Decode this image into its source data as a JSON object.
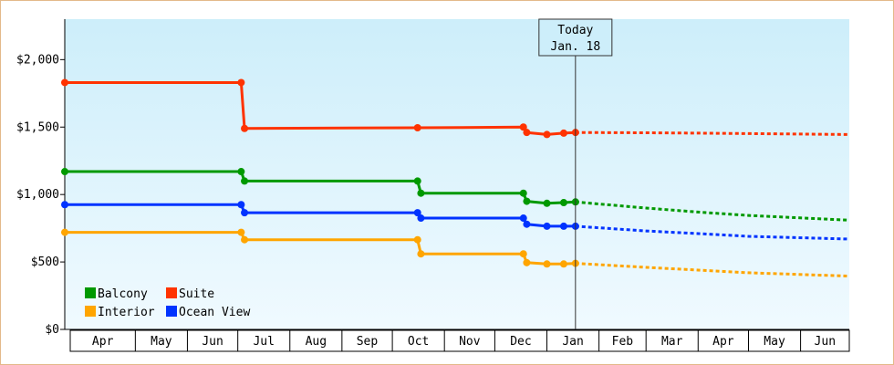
{
  "chart_data": {
    "type": "line",
    "step": true,
    "ylim": [
      0,
      2300
    ],
    "yticks": [
      0,
      500,
      1000,
      1500,
      2000
    ],
    "ytick_labels": [
      "$0",
      "$500",
      "$1,000",
      "$1,500",
      "$2,000"
    ],
    "xlim": [
      "2021-03-20",
      "2022-06-30"
    ],
    "months": [
      "Apr",
      "May",
      "Jun",
      "Jul",
      "Aug",
      "Sep",
      "Oct",
      "Nov",
      "Dec",
      "Jan",
      "Feb",
      "Mar",
      "Apr",
      "May",
      "Jun"
    ],
    "month_starts": [
      "2021-04-01",
      "2021-05-01",
      "2021-06-01",
      "2021-07-01",
      "2021-08-01",
      "2021-09-01",
      "2021-10-01",
      "2021-11-01",
      "2021-12-01",
      "2022-01-01",
      "2022-02-01",
      "2022-03-01",
      "2022-04-01",
      "2022-05-01",
      "2022-06-01"
    ],
    "today": {
      "date": "2022-01-18",
      "label_line1": "Today",
      "label_line2": "Jan. 18"
    },
    "legend_position": "bottom-left",
    "series": [
      {
        "name": "Suite",
        "color": "#ff3300",
        "points": [
          [
            "2021-03-20",
            1830
          ],
          [
            "2021-07-03",
            1830
          ],
          [
            "2021-07-05",
            1490
          ],
          [
            "2021-10-16",
            1495
          ],
          [
            "2021-12-18",
            1500
          ],
          [
            "2021-12-20",
            1460
          ],
          [
            "2022-01-01",
            1445
          ],
          [
            "2022-01-11",
            1455
          ],
          [
            "2022-01-18",
            1460
          ]
        ],
        "forecast": [
          [
            "2022-01-18",
            1460
          ],
          [
            "2022-03-01",
            1458
          ],
          [
            "2022-04-01",
            1455
          ],
          [
            "2022-05-01",
            1452
          ],
          [
            "2022-06-30",
            1445
          ]
        ]
      },
      {
        "name": "Balcony",
        "color": "#009900",
        "points": [
          [
            "2021-03-20",
            1170
          ],
          [
            "2021-07-03",
            1170
          ],
          [
            "2021-07-05",
            1100
          ],
          [
            "2021-10-16",
            1100
          ],
          [
            "2021-10-18",
            1010
          ],
          [
            "2021-12-18",
            1010
          ],
          [
            "2021-12-20",
            950
          ],
          [
            "2022-01-01",
            935
          ],
          [
            "2022-01-11",
            940
          ],
          [
            "2022-01-18",
            945
          ]
        ],
        "forecast": [
          [
            "2022-01-18",
            945
          ],
          [
            "2022-03-01",
            900
          ],
          [
            "2022-04-01",
            870
          ],
          [
            "2022-05-01",
            845
          ],
          [
            "2022-06-30",
            810
          ]
        ]
      },
      {
        "name": "Ocean View",
        "color": "#0033ff",
        "points": [
          [
            "2021-03-20",
            925
          ],
          [
            "2021-07-03",
            925
          ],
          [
            "2021-07-05",
            865
          ],
          [
            "2021-10-16",
            865
          ],
          [
            "2021-10-18",
            825
          ],
          [
            "2021-12-18",
            825
          ],
          [
            "2021-12-20",
            780
          ],
          [
            "2022-01-01",
            765
          ],
          [
            "2022-01-11",
            765
          ],
          [
            "2022-01-18",
            765
          ]
        ],
        "forecast": [
          [
            "2022-01-18",
            765
          ],
          [
            "2022-03-01",
            730
          ],
          [
            "2022-04-01",
            710
          ],
          [
            "2022-05-01",
            690
          ],
          [
            "2022-06-30",
            670
          ]
        ]
      },
      {
        "name": "Interior",
        "color": "#ffa500",
        "points": [
          [
            "2021-03-20",
            720
          ],
          [
            "2021-07-03",
            720
          ],
          [
            "2021-07-05",
            665
          ],
          [
            "2021-10-16",
            665
          ],
          [
            "2021-10-18",
            560
          ],
          [
            "2021-12-18",
            560
          ],
          [
            "2021-12-20",
            495
          ],
          [
            "2022-01-01",
            485
          ],
          [
            "2022-01-11",
            485
          ],
          [
            "2022-01-18",
            490
          ]
        ],
        "forecast": [
          [
            "2022-01-18",
            490
          ],
          [
            "2022-03-01",
            460
          ],
          [
            "2022-04-01",
            440
          ],
          [
            "2022-05-01",
            420
          ],
          [
            "2022-06-30",
            395
          ]
        ]
      }
    ],
    "legend": [
      {
        "name": "Balcony",
        "color": "#009900"
      },
      {
        "name": "Suite",
        "color": "#ff3300"
      },
      {
        "name": "Interior",
        "color": "#ffa500"
      },
      {
        "name": "Ocean View",
        "color": "#0033ff"
      }
    ],
    "background_gradient": [
      "#cdeefa",
      "#f0faff"
    ]
  }
}
